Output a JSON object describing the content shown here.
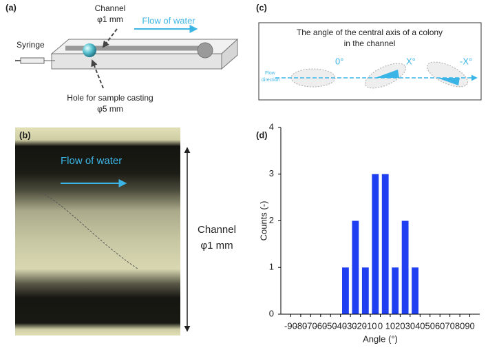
{
  "panels": {
    "a": {
      "label": "(a)",
      "channel": "Channel",
      "channel_size": "φ1 mm",
      "flow": "Flow of water",
      "syringe": "Syringe",
      "hole": "Hole for sample casting",
      "hole_size": "φ5 mm"
    },
    "b": {
      "label": "(b)",
      "flow": "Flow of water",
      "channel": "Channel",
      "channel_size": "φ1 mm"
    },
    "c": {
      "label": "(c)",
      "title_lines": [
        "The angle of the central axis of a colony",
        "in the channel"
      ],
      "angles": [
        "0°",
        "X°",
        "-X°"
      ],
      "flow_direction": [
        "Flow",
        "direction"
      ]
    },
    "d": {
      "label": "(d)"
    }
  },
  "chart_data": {
    "type": "histogram",
    "bins": [
      -40,
      -30,
      -20,
      -10,
      0,
      10,
      20,
      30,
      40
    ],
    "values": [
      1,
      2,
      1,
      3,
      3,
      1,
      2,
      1
    ],
    "color": "#1f3ff0",
    "xlim": [
      -100,
      100
    ],
    "xticks": [
      -90,
      -80,
      -70,
      -60,
      -50,
      -40,
      -30,
      -20,
      -10,
      0,
      10,
      20,
      30,
      40,
      50,
      60,
      70,
      80,
      90
    ],
    "ylim": [
      0,
      4
    ],
    "yticks": [
      0,
      1,
      2,
      3,
      4
    ],
    "xlabel": "Angle (°)",
    "ylabel": "Counts (-)"
  }
}
